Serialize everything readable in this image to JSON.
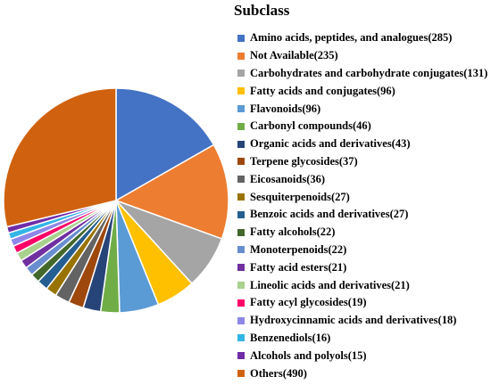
{
  "chart_data": {
    "type": "pie",
    "title": "",
    "legend_title": "Subclass",
    "legend_position": "right",
    "start_angle_deg": 0,
    "direction": "clockwise",
    "slices": [
      {
        "label": "Amino acids, peptides, and analogues(285)",
        "name": "Amino acids, peptides, and analogues",
        "value": 285,
        "color": "#4472C4"
      },
      {
        "label": "Not Available(235)",
        "name": "Not Available",
        "value": 235,
        "color": "#ED7D31"
      },
      {
        "label": "Carbohydrates and carbohydrate conjugates(131)",
        "name": "Carbohydrates and carbohydrate conjugates",
        "value": 131,
        "color": "#A5A5A5"
      },
      {
        "label": "Fatty acids and conjugates(96)",
        "name": "Fatty acids and conjugates",
        "value": 96,
        "color": "#FFC000"
      },
      {
        "label": "Flavonoids(96)",
        "name": "Flavonoids",
        "value": 96,
        "color": "#5B9BD5"
      },
      {
        "label": "Carbonyl compounds(46)",
        "name": "Carbonyl compounds",
        "value": 46,
        "color": "#70AD47"
      },
      {
        "label": "Organic acids and derivatives(43)",
        "name": "Organic acids and derivatives",
        "value": 43,
        "color": "#264478"
      },
      {
        "label": "Terpene glycosides(37)",
        "name": "Terpene glycosides",
        "value": 37,
        "color": "#9E480E"
      },
      {
        "label": "Eicosanoids(36)",
        "name": "Eicosanoids",
        "value": 36,
        "color": "#636363"
      },
      {
        "label": "Sesquiterpenoids(27)",
        "name": "Sesquiterpenoids",
        "value": 27,
        "color": "#997300"
      },
      {
        "label": "Benzoic acids and derivatives(27)",
        "name": "Benzoic acids and derivatives",
        "value": 27,
        "color": "#255E91"
      },
      {
        "label": "Fatty alcohols(22)",
        "name": "Fatty alcohols",
        "value": 22,
        "color": "#43682B"
      },
      {
        "label": "Monoterpenoids(22)",
        "name": "Monoterpenoids",
        "value": 22,
        "color": "#698ED0"
      },
      {
        "label": "Fatty acid esters(21)",
        "name": "Fatty acid esters",
        "value": 21,
        "color": "#7030A0"
      },
      {
        "label": "Lineolic acids and derivatives(21)",
        "name": "Lineolic acids and derivatives",
        "value": 21,
        "color": "#A9D18E"
      },
      {
        "label": "Fatty acyl glycosides(19)",
        "name": "Fatty acyl glycosides",
        "value": 19,
        "color": "#FF0066"
      },
      {
        "label": "Hydroxycinnamic acids and derivatives(18)",
        "name": "Hydroxycinnamic acids and derivatives",
        "value": 18,
        "color": "#8E86E8"
      },
      {
        "label": "Benzenediols(16)",
        "name": "Benzenediols",
        "value": 16,
        "color": "#33B5E5"
      },
      {
        "label": "Alcohols and polyols(15)",
        "name": "Alcohols and polyols",
        "value": 15,
        "color": "#6F2DA8"
      },
      {
        "label": "Others(490)",
        "name": "Others",
        "value": 490,
        "color": "#D0620F"
      }
    ]
  }
}
